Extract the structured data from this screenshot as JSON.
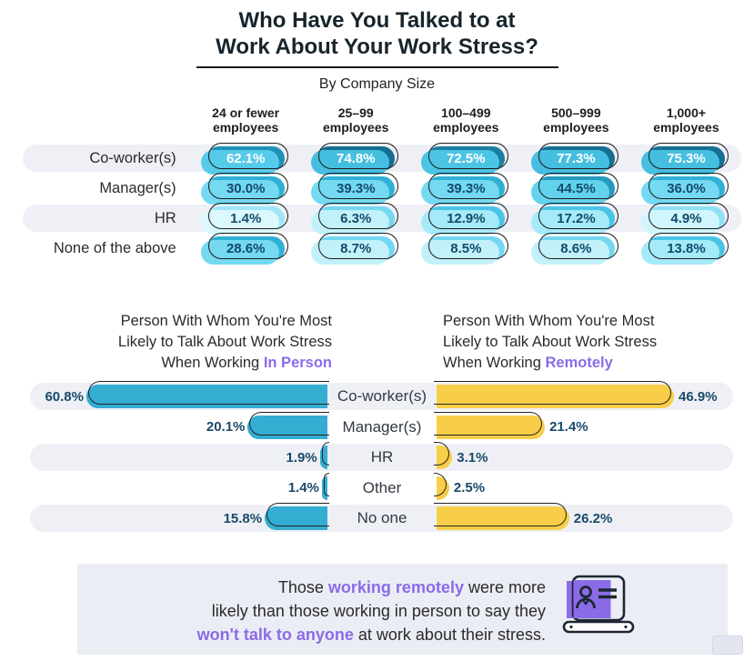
{
  "title": {
    "line1": "Who Have You Talked to at",
    "line2": "Work About Your Work Stress?",
    "subtitle": "By Company Size"
  },
  "matrix": {
    "col_headers": [
      {
        "l1": "24 or fewer",
        "l2": "employees"
      },
      {
        "l1": "25–99",
        "l2": "employees"
      },
      {
        "l1": "100–499",
        "l2": "employees"
      },
      {
        "l1": "500–999",
        "l2": "employees"
      },
      {
        "l1": "1,000+",
        "l2": "employees"
      }
    ],
    "rows": [
      {
        "label": "Co-worker(s)",
        "values": [
          "62.1%",
          "74.8%",
          "72.5%",
          "77.3%",
          "75.3%"
        ]
      },
      {
        "label": "Manager(s)",
        "values": [
          "30.0%",
          "39.3%",
          "39.3%",
          "44.5%",
          "36.0%"
        ]
      },
      {
        "label": "HR",
        "values": [
          "1.4%",
          "6.3%",
          "12.9%",
          "17.2%",
          "4.9%"
        ]
      },
      {
        "label": "None of the above",
        "values": [
          "28.6%",
          "8.7%",
          "8.5%",
          "8.6%",
          "13.8%"
        ]
      }
    ]
  },
  "butterfly": {
    "left_title": {
      "l1": "Person With Whom You're Most",
      "l2": "Likely to Talk About Work Stress",
      "l3a": "When Working ",
      "l3b": "In Person"
    },
    "right_title": {
      "l1": "Person With Whom You're Most",
      "l2": "Likely to Talk About Work Stress",
      "l3a": "When Working ",
      "l3b": "Remotely"
    },
    "categories": [
      "Co-worker(s)",
      "Manager(s)",
      "HR",
      "Other",
      "No one"
    ],
    "left_labels": [
      "60.8%",
      "20.1%",
      "1.9%",
      "1.4%",
      "15.8%"
    ],
    "right_labels": [
      "46.9%",
      "21.4%",
      "3.1%",
      "2.5%",
      "26.2%"
    ]
  },
  "callout": {
    "l1a": "Those ",
    "l1b": "working remotely",
    "l1c": " were more",
    "l2": "likely than those working in person to say they",
    "l3a": "won't talk to anyone",
    "l3b": " at work about their stress.",
    "icon": "laptop-person-icon"
  },
  "colors": {
    "accent_purple": "#8a6be8",
    "bar_blue": "#35add2",
    "bar_yellow": "#f8ce49",
    "pill_dark_teal": "#156f92",
    "pill_medium_cyan": "#2fb1d6",
    "pill_light_cyan": "#74d7f1",
    "row_band": "#eef0f6",
    "callout_bg": "#ebedf5",
    "pct_text": "#1a4a68"
  },
  "chart_data": [
    {
      "type": "table",
      "title": "Who Have You Talked to at Work About Your Work Stress? (By Company Size)",
      "unit": "%",
      "categories": [
        "24 or fewer employees",
        "25–99 employees",
        "100–499 employees",
        "500–999 employees",
        "1,000+ employees"
      ],
      "series": [
        {
          "name": "Co-worker(s)",
          "values": [
            62.1,
            74.8,
            72.5,
            77.3,
            75.3
          ]
        },
        {
          "name": "Manager(s)",
          "values": [
            30.0,
            39.3,
            39.3,
            44.5,
            36.0
          ]
        },
        {
          "name": "HR",
          "values": [
            1.4,
            6.3,
            12.9,
            17.2,
            4.9
          ]
        },
        {
          "name": "None of the above",
          "values": [
            28.6,
            8.7,
            8.5,
            8.6,
            13.8
          ]
        }
      ]
    },
    {
      "type": "bar",
      "orientation": "horizontal",
      "title": "Person With Whom You're Most Likely to Talk About Work Stress When Working In Person",
      "unit": "%",
      "categories": [
        "Co-worker(s)",
        "Manager(s)",
        "HR",
        "Other",
        "No one"
      ],
      "values": [
        60.8,
        20.1,
        1.9,
        1.4,
        15.8
      ],
      "xlim": [
        0,
        65
      ],
      "bar_color": "#35add2"
    },
    {
      "type": "bar",
      "orientation": "horizontal",
      "title": "Person With Whom You're Most Likely to Talk About Work Stress When Working Remotely",
      "unit": "%",
      "categories": [
        "Co-worker(s)",
        "Manager(s)",
        "HR",
        "Other",
        "No one"
      ],
      "values": [
        46.9,
        21.4,
        3.1,
        2.5,
        26.2
      ],
      "xlim": [
        0,
        50
      ],
      "bar_color": "#f8ce49"
    }
  ]
}
